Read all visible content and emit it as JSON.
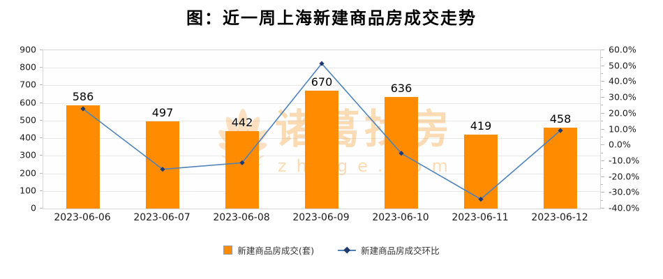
{
  "title": "图：近一周上海新建商品房成交走势",
  "watermark": {
    "brand": "诸葛找房",
    "domain": "zhuge.com"
  },
  "legend": {
    "items": [
      {
        "label": "新建商品房成交(套)",
        "type": "bar"
      },
      {
        "label": "新建商品房成交环比",
        "type": "line"
      }
    ]
  },
  "colors": {
    "bar": "#FF8C00",
    "line": "#4E82B8",
    "marker": "#1E3A6E",
    "grid": "#E9E9E9",
    "plot_border": "#D6D6D6",
    "watermark": "#F7941E",
    "text": "#1A1A1A"
  },
  "chart_data": {
    "type": "bar+line",
    "title": "图：近一周上海新建商品房成交走势",
    "categories": [
      "2023-06-06",
      "2023-06-07",
      "2023-06-08",
      "2023-06-09",
      "2023-06-10",
      "2023-06-11",
      "2023-06-12"
    ],
    "series": [
      {
        "name": "新建商品房成交(套)",
        "type": "bar",
        "axis": "left",
        "values": [
          586,
          497,
          442,
          670,
          636,
          419,
          458
        ]
      },
      {
        "name": "新建商品房成交环比",
        "type": "line",
        "axis": "right",
        "unit": "%",
        "values": [
          23.0,
          -15.2,
          -11.1,
          51.6,
          -5.1,
          -34.1,
          9.3
        ]
      }
    ],
    "left_axis": {
      "min": 0,
      "max": 900,
      "step": 100,
      "tick_labels": [
        "0",
        "100",
        "200",
        "300",
        "400",
        "500",
        "600",
        "700",
        "800",
        "900"
      ]
    },
    "right_axis": {
      "min": -40,
      "max": 60,
      "step": 10,
      "minor_step": 5,
      "tick_labels": [
        "-40.0%",
        "-30.0%",
        "-20.0%",
        "-10.0%",
        "0.0%",
        "10.0%",
        "20.0%",
        "30.0%",
        "40.0%",
        "50.0%",
        "60.0%"
      ]
    },
    "grid": "horizontal",
    "legend_position": "bottom",
    "bar_value_labels_shown": true
  }
}
